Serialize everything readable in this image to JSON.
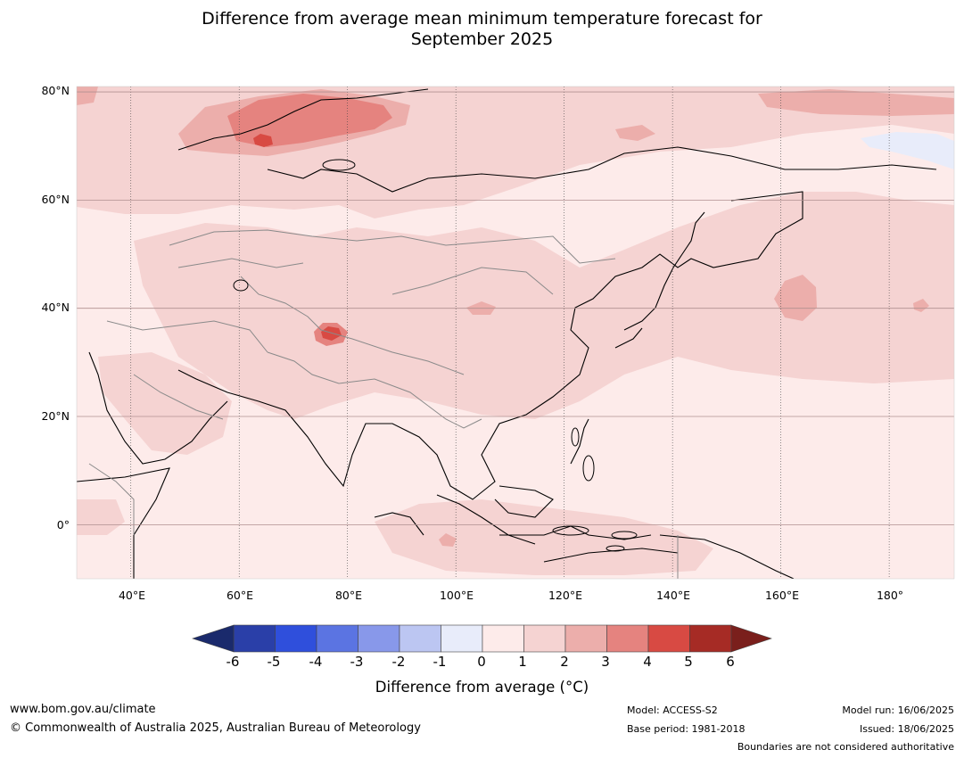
{
  "title": {
    "line1": "Difference from average mean minimum temperature forecast for",
    "line2": "September 2025"
  },
  "map": {
    "lat_labels": [
      "80°N",
      "60°N",
      "40°N",
      "20°N",
      "0°"
    ],
    "lon_labels": [
      "40°E",
      "60°E",
      "80°E",
      "100°E",
      "120°E",
      "140°E",
      "160°E",
      "180°"
    ],
    "extent": {
      "lon_min": 30,
      "lon_max": 192,
      "lat_min": -10,
      "lat_max": 81
    }
  },
  "colorbar": {
    "title": "Difference from average (°C)",
    "ticks": [
      "-6",
      "-5",
      "-4",
      "-3",
      "-2",
      "-1",
      "0",
      "1",
      "2",
      "3",
      "4",
      "5",
      "6"
    ],
    "under_color": "#1a2a6c",
    "over_color": "#7a1f1c",
    "colors": [
      "#2a3fa8",
      "#2f4fdc",
      "#5b74e2",
      "#8898ea",
      "#bcc6f2",
      "#e8ecfa",
      "#fdebea",
      "#f5d3d2",
      "#ecaeab",
      "#e5837f",
      "#d84a43",
      "#a62b25"
    ]
  },
  "footer": {
    "website": "www.bom.gov.au/climate",
    "copyright": "© Commonwealth of Australia 2025, Australian Bureau of Meteorology",
    "model": "Model: ACCESS-S2",
    "base_period": "Base period: 1981-2018",
    "model_run": "Model run: 16/06/2025",
    "issued": "Issued: 18/06/2025",
    "disclaimer": "Boundaries are not considered authoritative"
  }
}
